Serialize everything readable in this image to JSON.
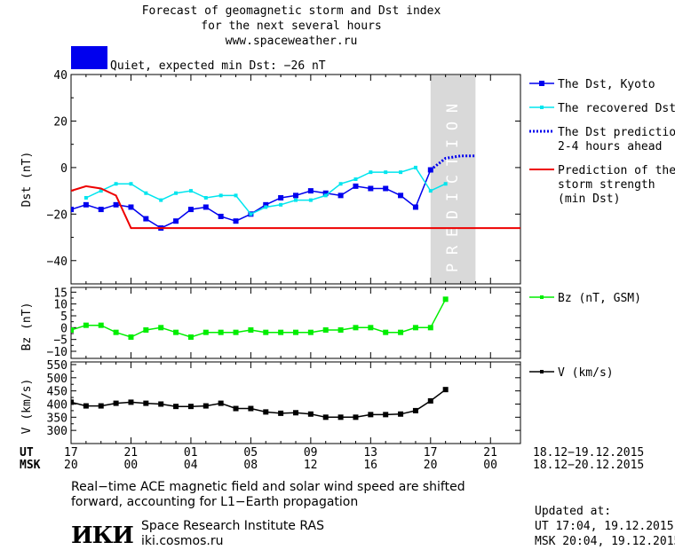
{
  "header": {
    "title_line1": "Forecast of geomagnetic storm and Dst index",
    "title_line2": "for the next several hours",
    "url": "www.spaceweather.ru",
    "status_color": "#0000ee",
    "status_text": "Quiet, expected min Dst: −26 nT"
  },
  "chart_data": [
    {
      "type": "line",
      "id": "dst",
      "ylabel": "Dst (nT)",
      "ylim": [
        -50,
        40
      ],
      "yticks": [
        40,
        20,
        0,
        -20,
        -40
      ],
      "xlim": [
        0,
        30
      ],
      "prediction_band": {
        "x_from": 24,
        "x_to": 27,
        "label": "PREDICTION",
        "color": "#d9d9d9"
      },
      "series": [
        {
          "name": "The Dst, Kyoto",
          "color": "#0000ee",
          "style": "solid-square",
          "x": [
            0,
            1,
            2,
            3,
            4,
            5,
            6,
            7,
            8,
            9,
            10,
            11,
            12,
            13,
            14,
            15,
            16,
            17,
            18,
            19,
            20,
            21,
            22,
            23,
            24
          ],
          "values": [
            -18,
            -16,
            -18,
            -16,
            -17,
            -22,
            -26,
            -23,
            -18,
            -17,
            -21,
            -23,
            -20,
            -16,
            -13,
            -12,
            -10,
            -11,
            -12,
            -8,
            -9,
            -9,
            -12,
            -17,
            -1
          ]
        },
        {
          "name": "The recovered Dst",
          "color": "#00e5ee",
          "style": "solid-dot",
          "x": [
            1,
            2,
            3,
            4,
            5,
            6,
            7,
            8,
            9,
            10,
            11,
            12,
            13,
            14,
            15,
            16,
            17,
            18,
            19,
            20,
            21,
            22,
            23,
            24,
            25
          ],
          "values": [
            -13,
            -10,
            -7,
            -7,
            -11,
            -14,
            -11,
            -10,
            -13,
            -12,
            -12,
            -20,
            -17,
            -16,
            -14,
            -14,
            -12,
            -7,
            -5,
            -2,
            -2,
            -2,
            0,
            -10,
            -7
          ]
        },
        {
          "name": "The Dst prediction\n2-4 hours ahead",
          "color": "#0000ee",
          "style": "dotted",
          "x": [
            24,
            25,
            26,
            27
          ],
          "values": [
            -1,
            4,
            5,
            5
          ]
        },
        {
          "name": "Prediction of the\nstorm strength\n(min Dst)",
          "color": "#ee0000",
          "style": "solid",
          "x": [
            -1,
            0,
            1,
            2,
            3,
            4,
            30
          ],
          "values": [
            -11,
            -10,
            -8,
            -9,
            -12,
            -26,
            -26
          ]
        }
      ]
    },
    {
      "type": "line",
      "id": "bz",
      "ylabel": "Bz (nT)",
      "ylim": [
        -13,
        17
      ],
      "yticks": [
        15,
        10,
        5,
        0,
        -5,
        -10
      ],
      "xlim": [
        0,
        30
      ],
      "series": [
        {
          "name": "Bz (nT, GSM)",
          "color": "#00ee00",
          "x": [
            0,
            1,
            2,
            3,
            4,
            5,
            6,
            7,
            8,
            9,
            10,
            11,
            12,
            13,
            14,
            15,
            16,
            17,
            18,
            19,
            20,
            21,
            22,
            23,
            24,
            25
          ],
          "values": [
            -1,
            1,
            1,
            -2,
            -4,
            -1,
            0,
            -2,
            -4,
            -2,
            -2,
            -2,
            -1,
            -2,
            -2,
            -2,
            -2,
            -1,
            -1,
            0,
            0,
            -2,
            -2,
            0,
            0,
            12
          ]
        }
      ]
    },
    {
      "type": "line",
      "id": "v",
      "ylabel": "V (km/s)",
      "ylim": [
        250,
        560
      ],
      "yticks": [
        550,
        500,
        450,
        400,
        350,
        300
      ],
      "xlim": [
        0,
        30
      ],
      "series": [
        {
          "name": "V (km/s)",
          "color": "#000000",
          "x": [
            0,
            1,
            2,
            3,
            4,
            5,
            6,
            7,
            8,
            9,
            10,
            11,
            12,
            13,
            14,
            15,
            16,
            17,
            18,
            19,
            20,
            21,
            22,
            23,
            24,
            25
          ],
          "values": [
            407,
            393,
            393,
            403,
            407,
            403,
            400,
            391,
            391,
            393,
            403,
            383,
            383,
            370,
            365,
            367,
            362,
            350,
            350,
            350,
            360,
            360,
            362,
            375,
            412,
            455
          ]
        }
      ]
    }
  ],
  "xaxis": {
    "ut_label": "UT",
    "msk_label": "MSK",
    "ut_ticks": [
      "17",
      "21",
      "01",
      "05",
      "09",
      "13",
      "17",
      "21"
    ],
    "msk_ticks": [
      "20",
      "00",
      "04",
      "08",
      "12",
      "16",
      "20",
      "00"
    ],
    "ut_range": "18.12−19.12.2015",
    "msk_range": "18.12−20.12.2015"
  },
  "footer": {
    "note_line1": "Real−time ACE magnetic field and solar wind speed are shifted",
    "note_line2": "forward, accounting for L1−Earth propagation",
    "logo_text": "ИКИ",
    "institute": "Space Research Institute RAS",
    "institute_url": "iki.cosmos.ru",
    "updated_label": "Updated at:",
    "updated_ut": "UT   17:04, 19.12.2015",
    "updated_msk": "MSK 20:04, 19.12.2015"
  }
}
